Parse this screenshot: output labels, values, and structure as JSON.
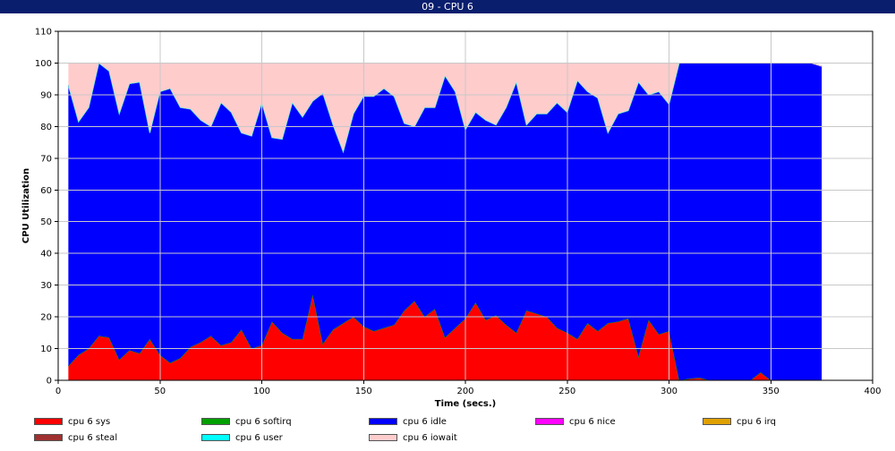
{
  "window": {
    "title": "09 - CPU 6"
  },
  "chart_data": {
    "type": "area",
    "stacked": true,
    "xlabel": "Time (secs.)",
    "ylabel": "CPU Utilization",
    "xlim": [
      0,
      400
    ],
    "ylim": [
      0,
      110
    ],
    "xticks": [
      0,
      50,
      100,
      150,
      200,
      250,
      300,
      350,
      400
    ],
    "yticks": [
      0,
      10,
      20,
      30,
      40,
      50,
      60,
      70,
      80,
      90,
      100,
      110
    ],
    "grid": true,
    "legend_position": "bottom",
    "x": [
      5,
      10,
      15,
      20,
      25,
      30,
      35,
      40,
      45,
      50,
      55,
      60,
      65,
      70,
      75,
      80,
      85,
      90,
      95,
      100,
      105,
      110,
      115,
      120,
      125,
      130,
      135,
      140,
      145,
      150,
      155,
      160,
      165,
      170,
      175,
      180,
      185,
      190,
      195,
      200,
      205,
      210,
      215,
      220,
      225,
      230,
      235,
      240,
      245,
      250,
      255,
      260,
      265,
      270,
      275,
      280,
      285,
      290,
      295,
      300,
      305,
      310,
      315,
      320,
      325,
      330,
      335,
      340,
      345,
      350,
      355,
      360,
      365,
      370,
      375
    ],
    "series": [
      {
        "name": "cpu 6 sys",
        "color": "#ff0000",
        "values": [
          4.5,
          8,
          10,
          14,
          13.5,
          6.5,
          9.5,
          8.5,
          13,
          8,
          5.5,
          7,
          10.5,
          12,
          14,
          11,
          12,
          16,
          10,
          11,
          18.5,
          15,
          13,
          13,
          27,
          11.5,
          16,
          18,
          20,
          17,
          15.5,
          16.5,
          17.5,
          22,
          25,
          20,
          22.5,
          13.5,
          16.5,
          19.5,
          24.5,
          19,
          20.5,
          17.5,
          15,
          22,
          21,
          20,
          16.5,
          15,
          13,
          18,
          15.5,
          18,
          18.5,
          19.5,
          7.5,
          19,
          14.5,
          15.5,
          0,
          0.5,
          0.8,
          0,
          0,
          0,
          0,
          0,
          2.5,
          0,
          0,
          0,
          0,
          0,
          0
        ]
      },
      {
        "name": "cpu 6 softirq",
        "color": "#00a000",
        "values": [
          0,
          0,
          0,
          0,
          0,
          0,
          0,
          0,
          0,
          0,
          0,
          0,
          0,
          0,
          0,
          0,
          0,
          0,
          0,
          0,
          0,
          0,
          0,
          0,
          0,
          0,
          0,
          0,
          0,
          0,
          0,
          0,
          0,
          0,
          0,
          0,
          0,
          0,
          0,
          0,
          0,
          0,
          0,
          0,
          0,
          0,
          0,
          0,
          0,
          0,
          0,
          0,
          0,
          0,
          0,
          0,
          0,
          0,
          0,
          0,
          0,
          0,
          0,
          0,
          0,
          0,
          0,
          0,
          0,
          0,
          0,
          0,
          0,
          0,
          0
        ]
      },
      {
        "name": "cpu 6 idle",
        "color": "#0000ff",
        "values": [
          88.5,
          73.5,
          76,
          86,
          84,
          77.5,
          84,
          85.5,
          65,
          83,
          86.5,
          79,
          75,
          70,
          66,
          76.5,
          72.5,
          62,
          67,
          76.5,
          58,
          61,
          74.5,
          70,
          61,
          79,
          64.5,
          54,
          64,
          72.5,
          74,
          75.5,
          72,
          59,
          55,
          66,
          63.5,
          82.5,
          74.5,
          59.5,
          60,
          63,
          60,
          68.5,
          79,
          58.5,
          63,
          64,
          71,
          69.5,
          81.5,
          73,
          73.5,
          60,
          65.5,
          65.5,
          86.5,
          71,
          76.5,
          71.5,
          100,
          99.5,
          99.2,
          100,
          100,
          100,
          100,
          100,
          97.5,
          100,
          100,
          100,
          100,
          100,
          99
        ]
      },
      {
        "name": "cpu 6 nice",
        "color": "#ff00ff",
        "values": [
          0,
          0,
          0,
          0,
          0,
          0,
          0,
          0,
          0,
          0,
          0,
          0,
          0,
          0,
          0,
          0,
          0,
          0,
          0,
          0,
          0,
          0,
          0,
          0,
          0,
          0,
          0,
          0,
          0,
          0,
          0,
          0,
          0,
          0,
          0,
          0,
          0,
          0,
          0,
          0,
          0,
          0,
          0,
          0,
          0,
          0,
          0,
          0,
          0,
          0,
          0,
          0,
          0,
          0,
          0,
          0,
          0,
          0,
          0,
          0,
          0,
          0,
          0,
          0,
          0,
          0,
          0,
          0,
          0,
          0,
          0,
          0,
          0,
          0,
          0
        ]
      },
      {
        "name": "cpu 6 irq",
        "color": "#e0a000",
        "values": [
          0,
          0,
          0,
          0,
          0,
          0,
          0,
          0,
          0,
          0,
          0,
          0,
          0,
          0,
          0,
          0,
          0,
          0,
          0,
          0,
          0,
          0,
          0,
          0,
          0,
          0,
          0,
          0,
          0,
          0,
          0,
          0,
          0,
          0,
          0,
          0,
          0,
          0,
          0,
          0,
          0,
          0,
          0,
          0,
          0,
          0,
          0,
          0,
          0,
          0,
          0,
          0,
          0,
          0,
          0,
          0,
          0,
          0,
          0,
          0,
          0,
          0,
          0,
          0,
          0,
          0,
          0,
          0,
          0,
          0,
          0,
          0,
          0,
          0,
          0
        ]
      },
      {
        "name": "cpu 6 steal",
        "color": "#a03030",
        "values": [
          0,
          0,
          0,
          0,
          0,
          0,
          0,
          0,
          0,
          0,
          0,
          0,
          0,
          0,
          0,
          0,
          0,
          0,
          0,
          0,
          0,
          0,
          0,
          0,
          0,
          0,
          0,
          0,
          0,
          0,
          0,
          0,
          0,
          0,
          0,
          0,
          0,
          0,
          0,
          0,
          0,
          0,
          0,
          0,
          0,
          0,
          0,
          0,
          0,
          0,
          0,
          0,
          0,
          0,
          0,
          0,
          0,
          0,
          0,
          0,
          0,
          0,
          0,
          0,
          0,
          0,
          0,
          0,
          0,
          0,
          0,
          0,
          0,
          0,
          0
        ]
      },
      {
        "name": "cpu 6 user",
        "color": "#00ffff",
        "values": [
          0,
          0,
          0,
          0,
          0,
          0,
          0,
          0,
          0,
          0,
          0,
          0,
          0,
          0,
          0,
          0,
          0,
          0,
          0,
          0,
          0,
          0,
          0,
          0,
          0,
          0,
          0,
          0,
          0,
          0,
          0,
          0,
          0,
          0,
          0,
          0,
          0,
          0,
          0,
          0,
          0,
          0,
          0,
          0,
          0,
          0,
          0,
          0,
          0,
          0,
          0,
          0,
          0,
          0,
          0,
          0,
          0,
          0,
          0,
          0,
          0,
          0,
          0,
          0,
          0,
          0,
          0,
          0,
          0,
          0,
          0,
          0,
          0,
          0,
          0
        ]
      },
      {
        "name": "cpu 6 iowait",
        "color": "#ffcccc",
        "values": [
          7,
          18.5,
          14,
          0,
          2.5,
          16,
          6.5,
          6,
          22,
          9,
          8,
          14,
          14.5,
          18,
          20,
          12.5,
          15.5,
          22,
          23,
          12.5,
          23.5,
          24,
          12.5,
          17,
          12,
          9.5,
          19.5,
          28,
          16,
          10.5,
          10.5,
          8,
          10.5,
          19,
          20,
          14,
          14,
          4,
          9,
          21,
          15.5,
          18,
          19.5,
          14,
          6,
          19.5,
          16,
          16,
          12.5,
          15.5,
          5.5,
          9,
          11,
          22,
          16,
          15,
          6,
          10,
          9,
          13,
          0,
          0,
          0,
          0,
          0,
          0,
          0,
          0,
          0,
          0,
          0,
          0,
          0,
          0,
          0
        ]
      }
    ]
  }
}
